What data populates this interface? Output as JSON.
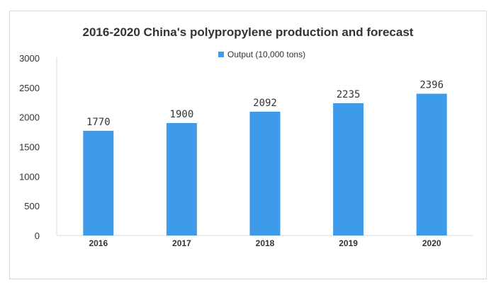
{
  "chart_data": {
    "type": "bar",
    "title": "2016-2020 China's polypropylene production and forecast",
    "xlabel": "",
    "ylabel": "",
    "categories": [
      "2016",
      "2017",
      "2018",
      "2019",
      "2020"
    ],
    "series": [
      {
        "name": "Output (10,000 tons)",
        "values": [
          1770,
          1900,
          2092,
          2235,
          2396
        ],
        "color": "#3d9be9"
      }
    ],
    "data_labels": [
      "1770",
      "1900",
      "2092",
      "2235",
      "2396"
    ],
    "ylim": [
      0,
      3000
    ],
    "yticks": [
      0,
      500,
      1000,
      1500,
      2000,
      2500,
      3000
    ],
    "ytick_labels": [
      "0",
      "500",
      "1000",
      "1500",
      "2000",
      "2500",
      "3000"
    ],
    "grid": false,
    "legend_position": "top-center"
  }
}
